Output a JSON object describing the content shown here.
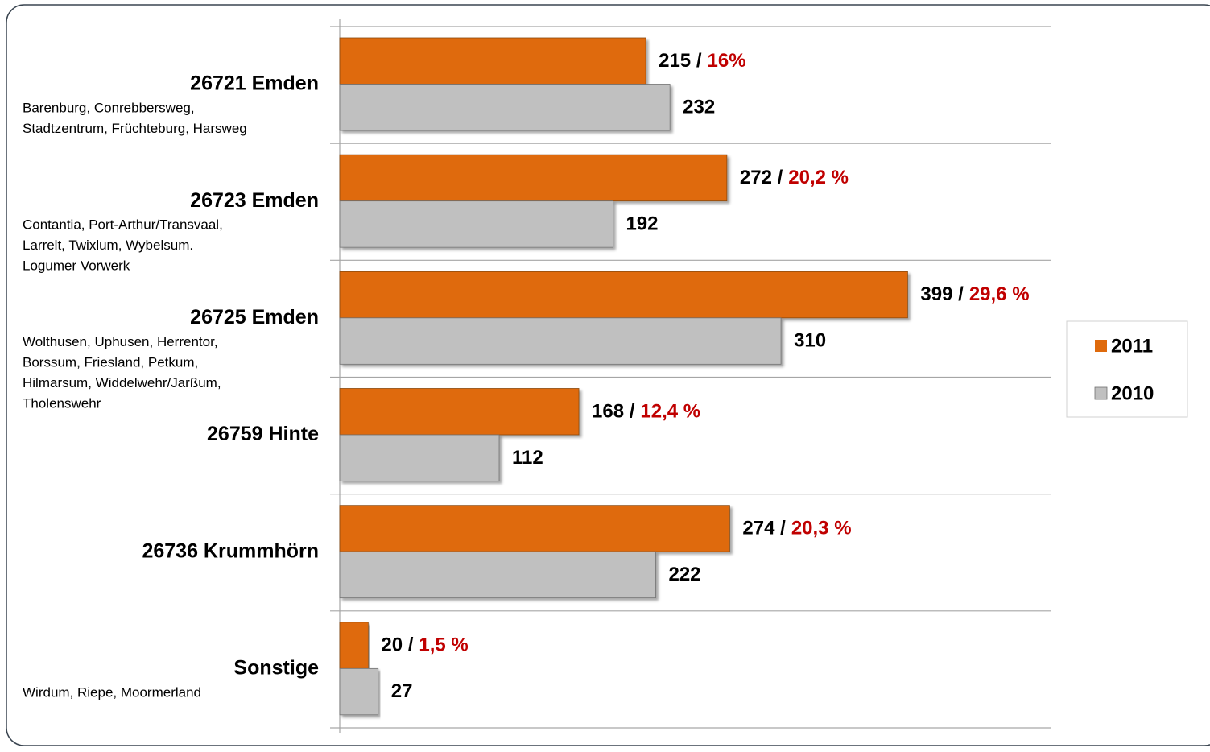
{
  "chart_data": {
    "type": "bar",
    "orientation": "horizontal",
    "categories": [
      "26721 Emden",
      "26723 Emden",
      "26725 Emden",
      "26759 Hinte",
      "26736 Krummhörn",
      "Sonstige"
    ],
    "descriptions": [
      [
        "Barenburg, Conrebbersweg,",
        "Stadtzentrum, Früchteburg, Harsweg"
      ],
      [
        "Contantia, Port-Arthur/Transvaal,",
        "Larrelt, Twixlum, Wybelsum.",
        "Logumer Vorwerk"
      ],
      [
        "Wolthusen, Uphusen, Herrentor,",
        "Borssum, Friesland, Petkum,",
        "Hilmarsum, Widdelwehr/Jarßum,",
        "Tholenswehr"
      ],
      [],
      [],
      [
        "Wirdum, Riepe, Moormerland"
      ]
    ],
    "series": [
      {
        "name": "2011",
        "color": "#df6a0c",
        "values": [
          215,
          272,
          399,
          168,
          274,
          20
        ],
        "value_labels": [
          "215 /",
          "272 /",
          "399 /",
          "168 /",
          "274 /",
          "20 /"
        ],
        "shares": [
          16,
          20.2,
          29.6,
          12.4,
          20.3,
          1.5
        ],
        "share_labels": [
          "16%",
          "20,2 %",
          "29,6 %",
          "12,4 %",
          "20,3 %",
          "1,5 %"
        ],
        "share_color": "#c00000"
      },
      {
        "name": "2010",
        "color": "#c0c0c0",
        "values": [
          232,
          192,
          310,
          112,
          222,
          27
        ]
      }
    ],
    "xlim": [
      0,
      500
    ]
  }
}
